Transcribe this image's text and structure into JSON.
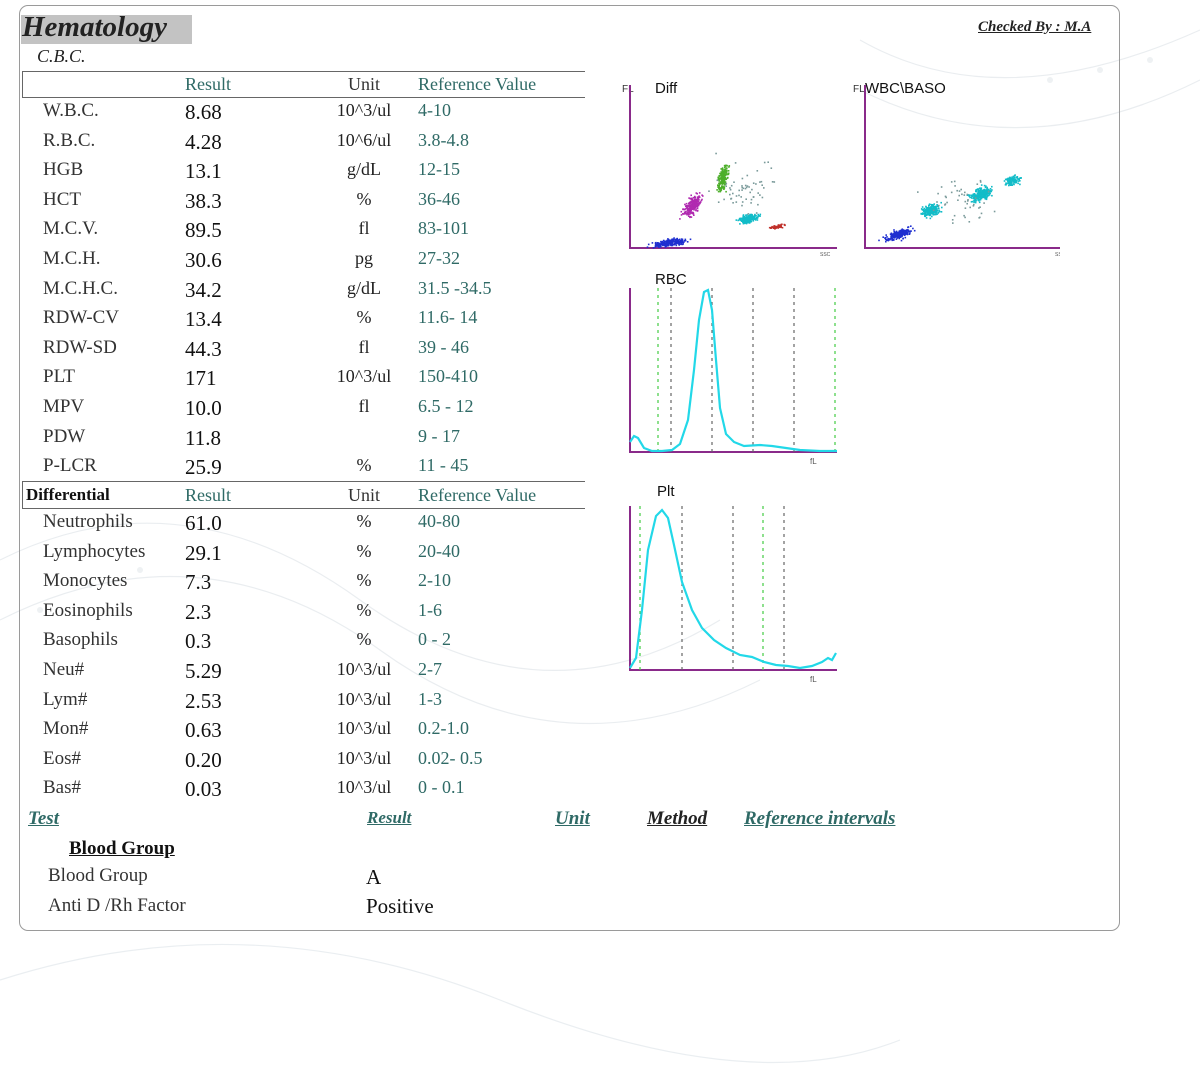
{
  "header": {
    "title": "Hematology",
    "subtitle": "C.B.C.",
    "checked_by": "Checked By : M.A"
  },
  "cbc": {
    "headers": {
      "result": "Result",
      "unit": "Unit",
      "reference": "Reference Value"
    },
    "rows": [
      {
        "name": "W.B.C.",
        "result": "8.68",
        "unit": "10^3/ul",
        "reference": "4-10"
      },
      {
        "name": "R.B.C.",
        "result": "4.28",
        "unit": "10^6/ul",
        "reference": "3.8-4.8"
      },
      {
        "name": "HGB",
        "result": "13.1",
        "unit": "g/dL",
        "reference": "12-15"
      },
      {
        "name": "HCT",
        "result": "38.3",
        "unit": "%",
        "reference": "36-46"
      },
      {
        "name": "M.C.V.",
        "result": "89.5",
        "unit": "fl",
        "reference": "83-101"
      },
      {
        "name": "M.C.H.",
        "result": "30.6",
        "unit": "pg",
        "reference": "27-32"
      },
      {
        "name": "M.C.H.C.",
        "result": "34.2",
        "unit": "g/dL",
        "reference": "31.5 -34.5"
      },
      {
        "name": "RDW-CV",
        "result": "13.4",
        "unit": "%",
        "reference": "11.6- 14"
      },
      {
        "name": "RDW-SD",
        "result": "44.3",
        "unit": "fl",
        "reference": "39 - 46"
      },
      {
        "name": "PLT",
        "result": "171",
        "unit": "10^3/ul",
        "reference": "150-410"
      },
      {
        "name": "MPV",
        "result": "10.0",
        "unit": "fl",
        "reference": "6.5 - 12"
      },
      {
        "name": "PDW",
        "result": "11.8",
        "unit": "",
        "reference": "9 - 17"
      },
      {
        "name": "P-LCR",
        "result": "25.9",
        "unit": "%",
        "reference": "11 - 45"
      }
    ]
  },
  "differential": {
    "headers": {
      "title": "Differential",
      "result": "Result",
      "unit": "Unit",
      "reference": "Reference Value"
    },
    "rows": [
      {
        "name": "Neutrophils",
        "result": "61.0",
        "unit": "%",
        "reference": "40-80"
      },
      {
        "name": "Lymphocytes",
        "result": "29.1",
        "unit": "%",
        "reference": "20-40"
      },
      {
        "name": "Monocytes",
        "result": "7.3",
        "unit": "%",
        "reference": "2-10"
      },
      {
        "name": "Eosinophils",
        "result": "2.3",
        "unit": "%",
        "reference": "1-6"
      },
      {
        "name": "Basophils",
        "result": "0.3",
        "unit": "%",
        "reference": "0 - 2"
      },
      {
        "name": "Neu#",
        "result": "5.29",
        "unit": "10^3/ul",
        "reference": "2-7"
      },
      {
        "name": "Lym#",
        "result": "2.53",
        "unit": "10^3/ul",
        "reference": "1-3"
      },
      {
        "name": "Mon#",
        "result": "0.63",
        "unit": "10^3/ul",
        "reference": "0.2-1.0"
      },
      {
        "name": "Eos#",
        "result": "0.20",
        "unit": "10^3/ul",
        "reference": "0.02- 0.5"
      },
      {
        "name": "Bas#",
        "result": "0.03",
        "unit": "10^3/ul",
        "reference": "0 - 0.1"
      }
    ]
  },
  "graphs": {
    "diff_label": "Diff",
    "wbc_baso_label": "WBC\\BASO",
    "rbc_label": "RBC",
    "plt_label": "Plt",
    "scatter_x_label": "SSC",
    "colors": {
      "axis": "#8a2a8a",
      "histogram": "#22d8e8",
      "cut_green": "#44cc44",
      "lymph": "#1f2fd0",
      "neut": "#b02ab0",
      "eos": "#4caf2a",
      "mono": "#12bcc8",
      "baso": "#c0302a"
    }
  },
  "blood_group": {
    "headers": {
      "test": "Test",
      "result": "Result",
      "unit": "Unit",
      "method": "Method",
      "reference": "Reference intervals"
    },
    "section_title": "Blood Group",
    "rows": [
      {
        "name": "Blood Group",
        "result": "A"
      },
      {
        "name": "Anti D /Rh Factor",
        "result": "Positive"
      }
    ]
  }
}
